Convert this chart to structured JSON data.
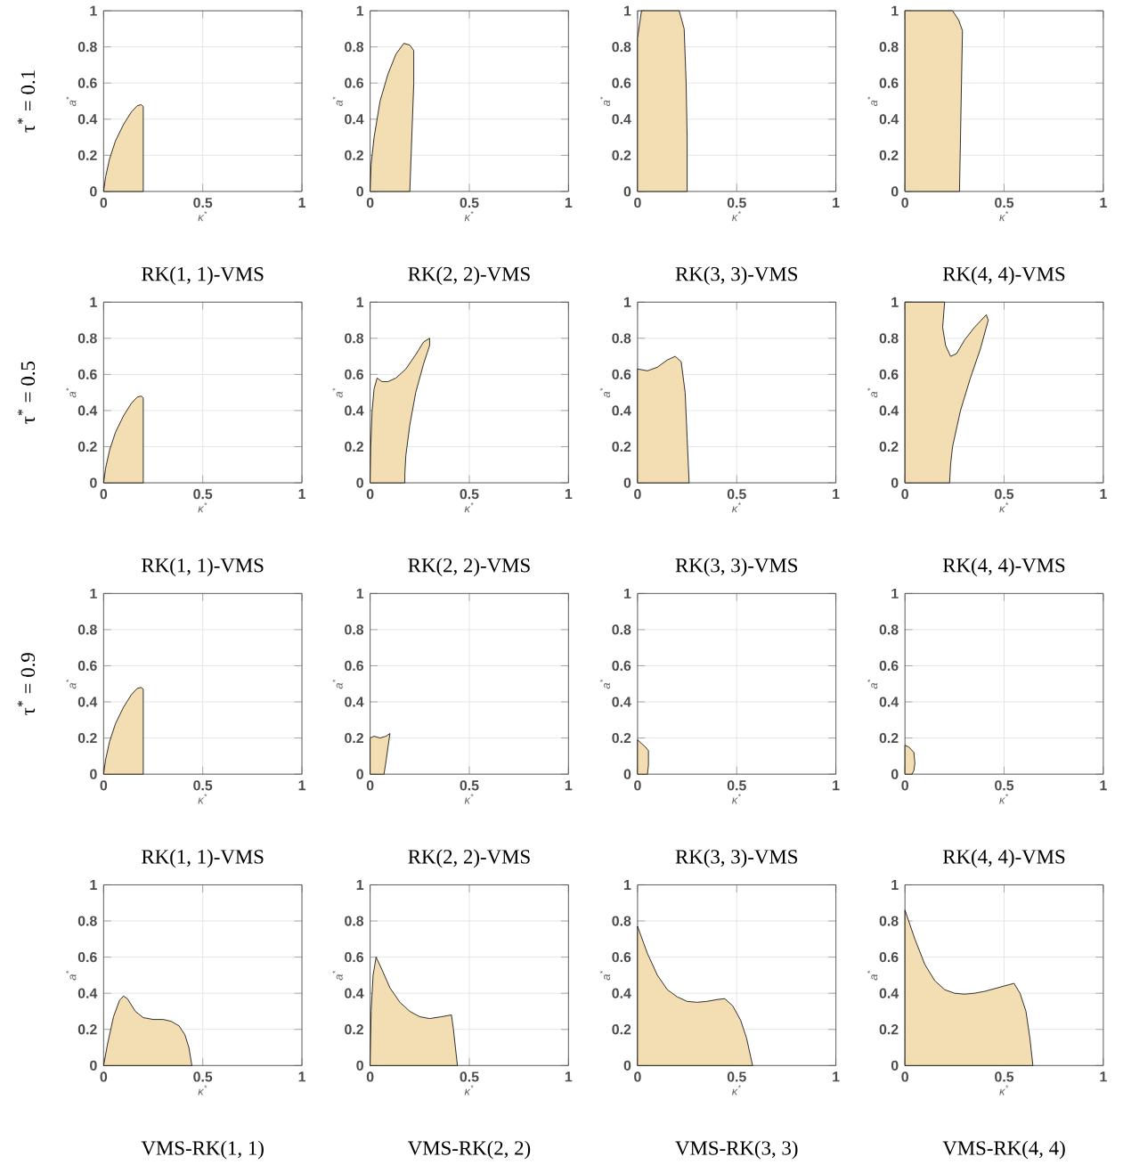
{
  "chart_data": [
    {
      "type": "area",
      "title": "RK(1, 1)-VMS",
      "xlabel": "κ$^{*}$",
      "ylabel": "a$^{*}$",
      "annotations": [
        "τ$^{*}$ = 0.1"
      ],
      "xlim": [
        0,
        1
      ],
      "ylim": [
        0,
        1
      ],
      "xticks": [
        0,
        0.5,
        1
      ],
      "yticks": [
        0,
        0.2,
        0.4,
        0.6,
        0.8,
        1
      ],
      "grid": true,
      "series": [
        {
          "color": "#f3ddb2",
          "x": [
            0,
            0.01,
            0.03,
            0.06,
            0.1,
            0.14,
            0.17,
            0.19,
            0.2,
            0.2
          ],
          "values": [
            0,
            0.08,
            0.18,
            0.28,
            0.37,
            0.44,
            0.475,
            0.48,
            0.47,
            0
          ]
        }
      ]
    },
    {
      "type": "area",
      "title": "RK(2, 2)-VMS",
      "xlabel": "κ$^{*}$",
      "ylabel": "a$^{*}$",
      "xlim": [
        0,
        1
      ],
      "ylim": [
        0,
        1
      ],
      "xticks": [
        0,
        0.5,
        1
      ],
      "yticks": [
        0,
        0.2,
        0.4,
        0.6,
        0.8,
        1
      ],
      "grid": true,
      "series": [
        {
          "color": "#f3ddb2",
          "x": [
            0,
            0.005,
            0.02,
            0.05,
            0.09,
            0.13,
            0.17,
            0.2,
            0.22,
            0.22,
            0.21,
            0.2
          ],
          "values": [
            0,
            0.15,
            0.3,
            0.5,
            0.65,
            0.76,
            0.82,
            0.81,
            0.78,
            0.6,
            0.3,
            0
          ]
        }
      ]
    },
    {
      "type": "area",
      "title": "RK(3, 3)-VMS",
      "xlabel": "κ$^{*}$",
      "ylabel": "a$^{*}$",
      "xlim": [
        0,
        1
      ],
      "ylim": [
        0,
        1
      ],
      "xticks": [
        0,
        0.5,
        1
      ],
      "yticks": [
        0,
        0.2,
        0.4,
        0.6,
        0.8,
        1
      ],
      "grid": true,
      "series": [
        {
          "color": "#f3ddb2",
          "x": [
            0,
            0,
            0.02,
            0.21,
            0.235,
            0.245,
            0.25,
            0.25
          ],
          "values": [
            0,
            0.85,
            1,
            1,
            0.9,
            0.6,
            0.3,
            0
          ]
        }
      ]
    },
    {
      "type": "area",
      "title": "RK(4, 4)-VMS",
      "xlabel": "κ$^{*}$",
      "ylabel": "a$^{*}$",
      "xlim": [
        0,
        1
      ],
      "ylim": [
        0,
        1
      ],
      "xticks": [
        0,
        0.5,
        1
      ],
      "yticks": [
        0,
        0.2,
        0.4,
        0.6,
        0.8,
        1
      ],
      "grid": true,
      "series": [
        {
          "color": "#f3ddb2",
          "x": [
            0,
            0,
            0.24,
            0.27,
            0.29,
            0.285,
            0.28,
            0.275
          ],
          "values": [
            0,
            1,
            1,
            0.95,
            0.89,
            0.6,
            0.3,
            0
          ]
        }
      ]
    },
    {
      "type": "area",
      "title": "RK(1, 1)-VMS",
      "xlabel": "κ$^{*}$",
      "ylabel": "a$^{*}$",
      "annotations": [
        "τ$^{*}$ = 0.5"
      ],
      "xlim": [
        0,
        1
      ],
      "ylim": [
        0,
        1
      ],
      "xticks": [
        0,
        0.5,
        1
      ],
      "yticks": [
        0,
        0.2,
        0.4,
        0.6,
        0.8,
        1
      ],
      "grid": true,
      "series": [
        {
          "color": "#f3ddb2",
          "x": [
            0,
            0.01,
            0.03,
            0.06,
            0.1,
            0.14,
            0.17,
            0.19,
            0.2,
            0.2
          ],
          "values": [
            0,
            0.08,
            0.18,
            0.28,
            0.37,
            0.44,
            0.475,
            0.48,
            0.47,
            0
          ]
        }
      ]
    },
    {
      "type": "area",
      "title": "RK(2, 2)-VMS",
      "xlabel": "κ$^{*}$",
      "ylabel": "a$^{*}$",
      "xlim": [
        0,
        1
      ],
      "ylim": [
        0,
        1
      ],
      "xticks": [
        0,
        0.5,
        1
      ],
      "yticks": [
        0,
        0.2,
        0.4,
        0.6,
        0.8,
        1
      ],
      "grid": true,
      "series": [
        {
          "color": "#f3ddb2",
          "x": [
            0,
            0.003,
            0.01,
            0.02,
            0.035,
            0.06,
            0.09,
            0.13,
            0.18,
            0.23,
            0.27,
            0.3,
            0.3,
            0.27,
            0.23,
            0.2,
            0.18,
            0.175,
            0.175
          ],
          "values": [
            0,
            0.2,
            0.4,
            0.52,
            0.58,
            0.56,
            0.56,
            0.58,
            0.63,
            0.71,
            0.78,
            0.8,
            0.76,
            0.66,
            0.5,
            0.32,
            0.15,
            0.05,
            0
          ]
        }
      ]
    },
    {
      "type": "area",
      "title": "RK(3, 3)-VMS",
      "xlabel": "κ$^{*}$",
      "ylabel": "a$^{*}$",
      "xlim": [
        0,
        1
      ],
      "ylim": [
        0,
        1
      ],
      "xticks": [
        0,
        0.5,
        1
      ],
      "yticks": [
        0,
        0.2,
        0.4,
        0.6,
        0.8,
        1
      ],
      "grid": true,
      "series": [
        {
          "color": "#f3ddb2",
          "x": [
            0,
            0,
            0.05,
            0.1,
            0.15,
            0.19,
            0.22,
            0.24,
            0.25,
            0.26
          ],
          "values": [
            0,
            0.63,
            0.62,
            0.64,
            0.68,
            0.7,
            0.67,
            0.5,
            0.25,
            0
          ]
        }
      ]
    },
    {
      "type": "area",
      "title": "RK(4, 4)-VMS",
      "xlabel": "κ$^{*}$",
      "ylabel": "a$^{*}$",
      "xlim": [
        0,
        1
      ],
      "ylim": [
        0,
        1
      ],
      "xticks": [
        0,
        0.5,
        1
      ],
      "yticks": [
        0,
        0.2,
        0.4,
        0.6,
        0.8,
        1
      ],
      "grid": true,
      "series": [
        {
          "color": "#f3ddb2",
          "x": [
            0,
            0,
            0.2,
            0.19,
            0.205,
            0.23,
            0.26,
            0.3,
            0.35,
            0.41,
            0.42,
            0.38,
            0.33,
            0.28,
            0.24,
            0.23,
            0.225
          ],
          "values": [
            0,
            1,
            1,
            0.86,
            0.76,
            0.7,
            0.715,
            0.79,
            0.86,
            0.93,
            0.9,
            0.74,
            0.58,
            0.4,
            0.2,
            0.1,
            0
          ]
        }
      ]
    },
    {
      "type": "area",
      "title": "RK(1, 1)-VMS",
      "xlabel": "κ$^{*}$",
      "ylabel": "a$^{*}$",
      "annotations": [
        "τ$^{*}$ = 0.9"
      ],
      "xlim": [
        0,
        1
      ],
      "ylim": [
        0,
        1
      ],
      "xticks": [
        0,
        0.5,
        1
      ],
      "yticks": [
        0,
        0.2,
        0.4,
        0.6,
        0.8,
        1
      ],
      "grid": true,
      "series": [
        {
          "color": "#f3ddb2",
          "x": [
            0,
            0.01,
            0.03,
            0.06,
            0.1,
            0.14,
            0.17,
            0.19,
            0.2,
            0.2
          ],
          "values": [
            0,
            0.08,
            0.18,
            0.28,
            0.37,
            0.44,
            0.475,
            0.48,
            0.47,
            0
          ]
        }
      ]
    },
    {
      "type": "area",
      "title": "RK(2, 2)-VMS",
      "xlabel": "κ$^{*}$",
      "ylabel": "a$^{*}$",
      "xlim": [
        0,
        1
      ],
      "ylim": [
        0,
        1
      ],
      "xticks": [
        0,
        0.5,
        1
      ],
      "yticks": [
        0,
        0.2,
        0.4,
        0.6,
        0.8,
        1
      ],
      "grid": true,
      "series": [
        {
          "color": "#f3ddb2",
          "x": [
            0,
            0,
            0.02,
            0.05,
            0.08,
            0.1,
            0.09,
            0.08,
            0.07
          ],
          "values": [
            0,
            0.2,
            0.21,
            0.2,
            0.21,
            0.225,
            0.15,
            0.07,
            0
          ]
        }
      ]
    },
    {
      "type": "area",
      "title": "RK(3, 3)-VMS",
      "xlabel": "κ$^{*}$",
      "ylabel": "a$^{*}$",
      "xlim": [
        0,
        1
      ],
      "ylim": [
        0,
        1
      ],
      "xticks": [
        0,
        0.5,
        1
      ],
      "yticks": [
        0,
        0.2,
        0.4,
        0.6,
        0.8,
        1
      ],
      "grid": true,
      "series": [
        {
          "color": "#f3ddb2",
          "x": [
            0,
            0,
            0.02,
            0.04,
            0.055,
            0.055,
            0.05
          ],
          "values": [
            0,
            0.19,
            0.17,
            0.15,
            0.13,
            0.05,
            0
          ]
        }
      ]
    },
    {
      "type": "area",
      "title": "RK(4, 4)-VMS",
      "xlabel": "κ$^{*}$",
      "ylabel": "a$^{*}$",
      "xlim": [
        0,
        1
      ],
      "ylim": [
        0,
        1
      ],
      "xticks": [
        0,
        0.5,
        1
      ],
      "yticks": [
        0,
        0.2,
        0.4,
        0.6,
        0.8,
        1
      ],
      "grid": true,
      "series": [
        {
          "color": "#f3ddb2",
          "x": [
            0,
            0,
            0.02,
            0.045,
            0.05,
            0.045,
            0.035
          ],
          "values": [
            0,
            0.16,
            0.15,
            0.12,
            0.06,
            0.02,
            0
          ]
        }
      ]
    },
    {
      "type": "area",
      "title": "VMS-RK(1, 1)",
      "xlabel": "κ$^{*}$",
      "ylabel": "a$^{*}$",
      "xlim": [
        0,
        1
      ],
      "ylim": [
        0,
        1
      ],
      "xticks": [
        0,
        0.5,
        1
      ],
      "yticks": [
        0,
        0.2,
        0.4,
        0.6,
        0.8,
        1
      ],
      "grid": true,
      "series": [
        {
          "color": "#f3ddb2",
          "x": [
            0,
            0.02,
            0.05,
            0.08,
            0.1,
            0.12,
            0.16,
            0.2,
            0.25,
            0.3,
            0.34,
            0.38,
            0.41,
            0.43,
            0.445
          ],
          "values": [
            0,
            0.12,
            0.27,
            0.36,
            0.385,
            0.37,
            0.3,
            0.265,
            0.255,
            0.255,
            0.245,
            0.22,
            0.17,
            0.1,
            0
          ]
        }
      ]
    },
    {
      "type": "area",
      "title": "VMS-RK(2, 2)",
      "xlabel": "κ$^{*}$",
      "ylabel": "a$^{*}$",
      "xlim": [
        0,
        1
      ],
      "ylim": [
        0,
        1
      ],
      "xticks": [
        0,
        0.5,
        1
      ],
      "yticks": [
        0,
        0.2,
        0.4,
        0.6,
        0.8,
        1
      ],
      "grid": true,
      "series": [
        {
          "color": "#f3ddb2",
          "x": [
            0,
            0.005,
            0.015,
            0.03,
            0.06,
            0.1,
            0.15,
            0.2,
            0.25,
            0.3,
            0.36,
            0.41,
            0.42,
            0.43,
            0.44
          ],
          "values": [
            0,
            0.3,
            0.5,
            0.6,
            0.53,
            0.43,
            0.35,
            0.3,
            0.27,
            0.26,
            0.27,
            0.28,
            0.2,
            0.1,
            0
          ]
        }
      ]
    },
    {
      "type": "area",
      "title": "VMS-RK(3, 3)",
      "xlabel": "κ$^{*}$",
      "ylabel": "a$^{*}$",
      "xlim": [
        0,
        1
      ],
      "ylim": [
        0,
        1
      ],
      "xticks": [
        0,
        0.5,
        1
      ],
      "yticks": [
        0,
        0.2,
        0.4,
        0.6,
        0.8,
        1
      ],
      "grid": true,
      "series": [
        {
          "color": "#f3ddb2",
          "x": [
            0,
            0,
            0.05,
            0.1,
            0.15,
            0.2,
            0.25,
            0.3,
            0.35,
            0.4,
            0.44,
            0.48,
            0.52,
            0.55,
            0.57,
            0.58
          ],
          "values": [
            0,
            0.77,
            0.62,
            0.5,
            0.42,
            0.38,
            0.355,
            0.35,
            0.355,
            0.365,
            0.37,
            0.33,
            0.25,
            0.15,
            0.05,
            0
          ]
        }
      ]
    },
    {
      "type": "area",
      "title": "VMS-RK(4, 4)",
      "xlabel": "κ$^{*}$",
      "ylabel": "a$^{*}$",
      "xlim": [
        0,
        1
      ],
      "ylim": [
        0,
        1
      ],
      "xticks": [
        0,
        0.5,
        1
      ],
      "yticks": [
        0,
        0.2,
        0.4,
        0.6,
        0.8,
        1
      ],
      "grid": true,
      "series": [
        {
          "color": "#f3ddb2",
          "x": [
            0,
            0,
            0.05,
            0.1,
            0.15,
            0.2,
            0.25,
            0.3,
            0.35,
            0.4,
            0.45,
            0.5,
            0.55,
            0.58,
            0.61,
            0.63,
            0.645
          ],
          "values": [
            0,
            0.86,
            0.7,
            0.56,
            0.47,
            0.42,
            0.4,
            0.395,
            0.4,
            0.41,
            0.425,
            0.44,
            0.455,
            0.4,
            0.3,
            0.15,
            0
          ]
        }
      ]
    }
  ]
}
